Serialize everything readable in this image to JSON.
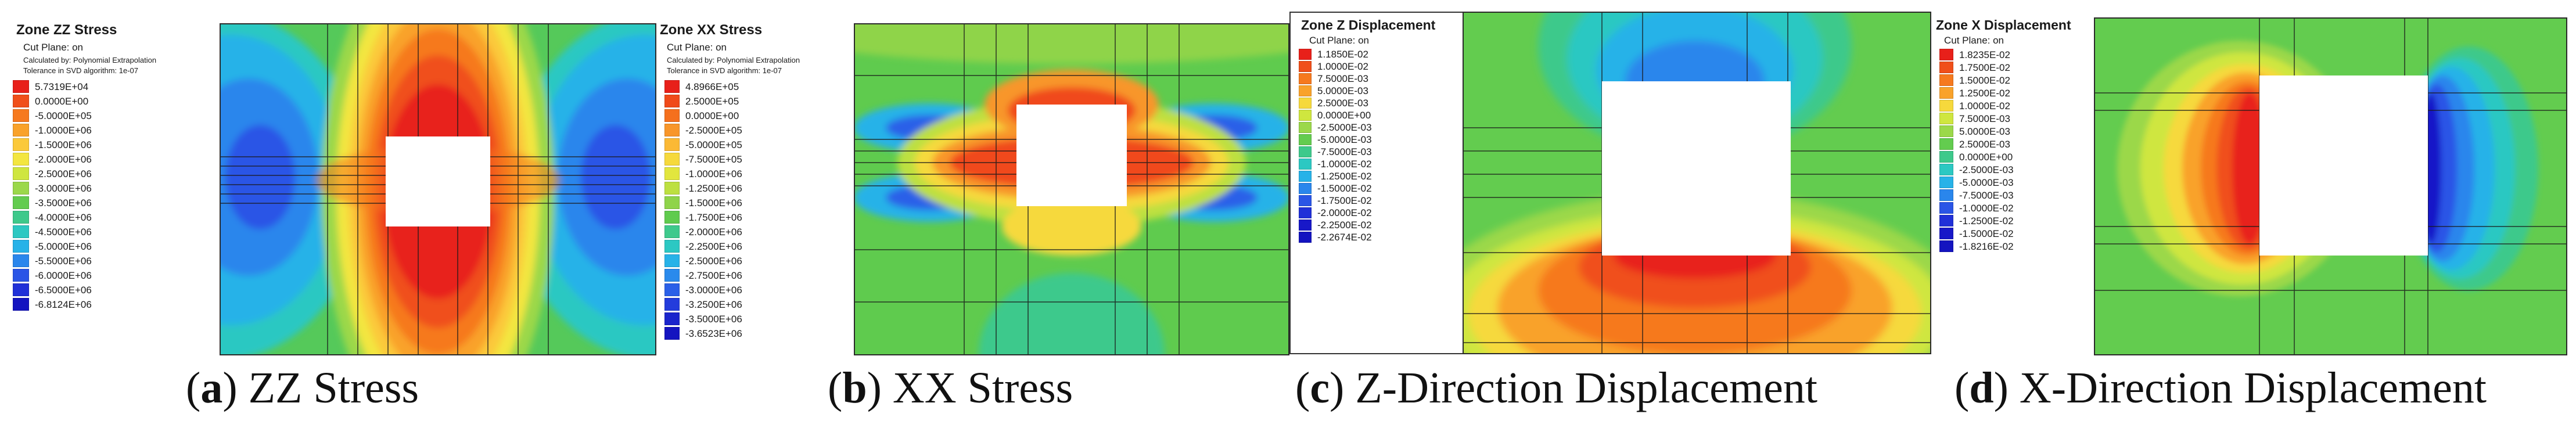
{
  "panels": [
    {
      "letter": "a",
      "caption": " ZZ Stress",
      "legend": {
        "title": "Zone ZZ Stress",
        "sub": [
          "Cut Plane: on",
          "Calculated by: Polynomial Extrapolation",
          "Tolerance in SVD algorithm: 1e-07"
        ],
        "values": [
          "5.7319E+04",
          "0.0000E+00",
          "-5.0000E+05",
          "-1.0000E+06",
          "-1.5000E+06",
          "-2.0000E+06",
          "-2.5000E+06",
          "-3.0000E+06",
          "-3.5000E+06",
          "-4.0000E+06",
          "-4.5000E+06",
          "-5.0000E+06",
          "-5.5000E+06",
          "-6.0000E+06",
          "-6.5000E+06",
          "-6.8124E+06"
        ],
        "colors": [
          "#e8201a",
          "#f04f1a",
          "#f6791e",
          "#f9a22a",
          "#fbc93a",
          "#f3e640",
          "#cfe63f",
          "#9bd84a",
          "#63cc4f",
          "#3ec98b",
          "#2cc8c2",
          "#27b2e8",
          "#2a86ec",
          "#2a55e6",
          "#2030d8",
          "#1414c0"
        ]
      }
    },
    {
      "letter": "b",
      "caption": " XX Stress",
      "legend": {
        "title": "Zone XX Stress",
        "sub": [
          "Cut Plane: on",
          "Calculated by: Polynomial Extrapolation",
          "Tolerance in SVD algorithm: 1e-07"
        ],
        "values": [
          "4.8966E+05",
          "2.5000E+05",
          "0.0000E+00",
          "-2.5000E+05",
          "-5.0000E+05",
          "-7.5000E+05",
          "-1.0000E+06",
          "-1.2500E+06",
          "-1.5000E+06",
          "-1.7500E+06",
          "-2.0000E+06",
          "-2.2500E+06",
          "-2.5000E+06",
          "-2.7500E+06",
          "-3.0000E+06",
          "-3.2500E+06",
          "-3.5000E+06",
          "-3.6523E+06"
        ],
        "colors": [
          "#e8201a",
          "#f04a1a",
          "#f5701d",
          "#f8962a",
          "#fbb935",
          "#f6d93c",
          "#e2e63e",
          "#bde040",
          "#8fd44a",
          "#5fcb4e",
          "#3ec98c",
          "#2cc8c3",
          "#27b2e8",
          "#2a8aec",
          "#2a60e8",
          "#233cdc",
          "#1a24cc",
          "#1414c0"
        ]
      }
    },
    {
      "letter": "c",
      "caption": " Z-Direction Displacement",
      "legend": {
        "title": "Zone Z Displacement",
        "sub": [
          "Cut Plane: on"
        ],
        "values": [
          "1.1850E-02",
          "1.0000E-02",
          "7.5000E-03",
          "5.0000E-03",
          "2.5000E-03",
          "0.0000E+00",
          "-2.5000E-03",
          "-5.0000E-03",
          "-7.5000E-03",
          "-1.0000E-02",
          "-1.2500E-02",
          "-1.5000E-02",
          "-1.7500E-02",
          "-2.0000E-02",
          "-2.2500E-02",
          "-2.2674E-02"
        ],
        "colors": [
          "#e8201a",
          "#f04f1a",
          "#f6791e",
          "#f9a22a",
          "#f6d93c",
          "#cfe63f",
          "#9bd84a",
          "#63cc4f",
          "#3ec98b",
          "#2cc8c2",
          "#27b2e8",
          "#2a86ec",
          "#2a55e6",
          "#2030d8",
          "#1818c8",
          "#1414c0"
        ]
      }
    },
    {
      "letter": "d",
      "caption": " X-Direction Displacement",
      "legend": {
        "title": "Zone X Displacement",
        "sub": [
          "Cut Plane: on"
        ],
        "values": [
          "1.8235E-02",
          "1.7500E-02",
          "1.5000E-02",
          "1.2500E-02",
          "1.0000E-02",
          "7.5000E-03",
          "5.0000E-03",
          "2.5000E-03",
          "0.0000E+00",
          "-2.5000E-03",
          "-5.0000E-03",
          "-7.5000E-03",
          "-1.0000E-02",
          "-1.2500E-02",
          "-1.5000E-02",
          "-1.8216E-02"
        ],
        "colors": [
          "#e8201a",
          "#f04f1a",
          "#f6791e",
          "#f9a22a",
          "#f6d93c",
          "#cfe63f",
          "#9bd84a",
          "#63cc4f",
          "#3ec98b",
          "#2cc8c2",
          "#27b2e8",
          "#2a86ec",
          "#2a55e6",
          "#2030d8",
          "#1818c8",
          "#1414c0"
        ]
      }
    }
  ]
}
